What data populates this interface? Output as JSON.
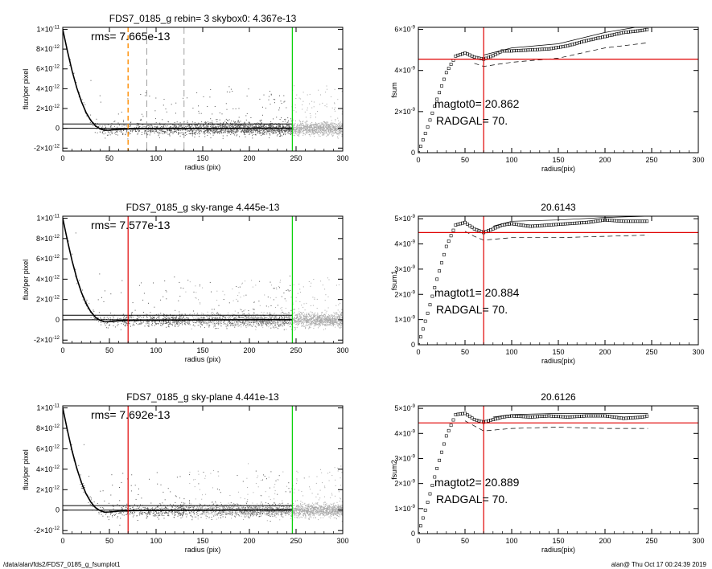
{
  "footer": {
    "left": "/data/alan/fds2/FDS7_0185_g_fsumplot1",
    "right": "alan@  Thu Oct 17 00:24:39 2019"
  },
  "colors": {
    "axes": "#000000",
    "scatter": "#555555",
    "scatter_light": "#a8a8a8",
    "profile": "#000000",
    "red": "#e00000",
    "green": "#00d000",
    "orange": "#ff8c00",
    "gray_dash": "#888888"
  },
  "chart_data": [
    {
      "id": "flux-1",
      "type": "scatter",
      "title": "FDS7_0185_g rebin= 3    skybox0:  4.367e-13",
      "xlabel": "radius (pix)",
      "ylabel": "flux/per pixel",
      "xlim": [
        0,
        300
      ],
      "ylim": [
        -2.3e-12,
        1.02e-11
      ],
      "xticks": [
        0,
        50,
        100,
        150,
        200,
        250,
        300
      ],
      "yticks": [
        {
          "value": -2e-12,
          "mant": "-2×10",
          "exp": "-12"
        },
        {
          "value": 0,
          "mant": "0",
          "exp": ""
        },
        {
          "value": 2e-12,
          "mant": "2×10",
          "exp": "-12"
        },
        {
          "value": 4e-12,
          "mant": "4×10",
          "exp": "-12"
        },
        {
          "value": 6e-12,
          "mant": "6×10",
          "exp": "-12"
        },
        {
          "value": 8e-12,
          "mant": "8×10",
          "exp": "-12"
        },
        {
          "value": 1e-11,
          "mant": "1×10",
          "exp": "-11"
        }
      ],
      "annotation": "rms= 7.665e-13",
      "hlines": [
        4.367e-13,
        0
      ],
      "vlines": [
        {
          "x": 70,
          "style": "orange-dash"
        },
        {
          "x": 90,
          "style": "gray-dash"
        },
        {
          "x": 130,
          "style": "gray-dash"
        },
        {
          "x": 246,
          "style": "green"
        }
      ],
      "profile": {
        "x": [
          0,
          5,
          10,
          15,
          20,
          25,
          30,
          35,
          40,
          45,
          50,
          60,
          70,
          80,
          100,
          120,
          150,
          180,
          210,
          246
        ],
        "y": [
          1e-11,
          7.8e-12,
          5.8e-12,
          4.1e-12,
          2.7e-12,
          1.6e-12,
          8e-13,
          2.5e-13,
          -5e-14,
          -2e-13,
          -1.8e-13,
          -1e-13,
          -6e-14,
          -4e-14,
          -3e-14,
          -2e-14,
          -1e-14,
          0,
          1e-14,
          1e-14
        ]
      }
    },
    {
      "id": "fsum-0",
      "type": "scatter",
      "title": "",
      "xlabel": "radius(pix)",
      "ylabel": "fsum",
      "xlim": [
        0,
        300
      ],
      "ylim": [
        0,
        6.1e-09
      ],
      "xticks": [
        0,
        50,
        100,
        150,
        200,
        250,
        300
      ],
      "yticks": [
        {
          "value": 0,
          "mant": "0",
          "exp": ""
        },
        {
          "value": 2e-09,
          "mant": "2×10",
          "exp": "-9"
        },
        {
          "value": 4e-09,
          "mant": "4×10",
          "exp": "-9"
        },
        {
          "value": 6e-09,
          "mant": "6×10",
          "exp": "-9"
        }
      ],
      "annotation": "magtot0=  20.862",
      "annotation2": "RADGAL=     70.",
      "hline": 4.55e-09,
      "vline": 70,
      "curve": {
        "x": [
          0,
          10,
          20,
          30,
          40,
          50,
          60,
          70,
          80,
          90,
          100,
          120,
          140,
          160,
          180,
          200,
          220,
          240,
          246
        ],
        "y": [
          0,
          1.25e-09,
          2.6e-09,
          3.9e-09,
          4.7e-09,
          4.85e-09,
          4.65e-09,
          4.55e-09,
          4.72e-09,
          4.95e-09,
          4.95e-09,
          5e-09,
          5.05e-09,
          5.2e-09,
          5.45e-09,
          5.65e-09,
          5.85e-09,
          5.95e-09,
          6e-09
        ]
      },
      "upper": {
        "x": [
          70,
          100,
          150,
          200,
          246
        ],
        "y": [
          4.75e-09,
          5.1e-09,
          5.3e-09,
          5.85e-09,
          6.2e-09
        ]
      },
      "lower": {
        "x": [
          60,
          70,
          100,
          150,
          200,
          246
        ],
        "y": [
          4.35e-09,
          4.2e-09,
          4.4e-09,
          4.6e-09,
          5.1e-09,
          5.35e-09
        ]
      }
    },
    {
      "id": "flux-2",
      "type": "scatter",
      "title": "FDS7_0185_g sky-range  4.445e-13",
      "xlabel": "radius (pix)",
      "ylabel": "flux/per pixel",
      "xlim": [
        0,
        300
      ],
      "ylim": [
        -2.3e-12,
        1.02e-11
      ],
      "xticks": [
        0,
        50,
        100,
        150,
        200,
        250,
        300
      ],
      "yticks": [
        {
          "value": -2e-12,
          "mant": "-2×10",
          "exp": "-12"
        },
        {
          "value": 0,
          "mant": "0",
          "exp": ""
        },
        {
          "value": 2e-12,
          "mant": "2×10",
          "exp": "-12"
        },
        {
          "value": 4e-12,
          "mant": "4×10",
          "exp": "-12"
        },
        {
          "value": 6e-12,
          "mant": "6×10",
          "exp": "-12"
        },
        {
          "value": 8e-12,
          "mant": "8×10",
          "exp": "-12"
        },
        {
          "value": 1e-11,
          "mant": "1×10",
          "exp": "-11"
        }
      ],
      "annotation": "rms= 7.577e-13",
      "hlines": [
        4.445e-13,
        0
      ],
      "vlines": [
        {
          "x": 70,
          "style": "red"
        },
        {
          "x": 246,
          "style": "green"
        }
      ],
      "profile": {
        "x": [
          0,
          5,
          10,
          15,
          20,
          25,
          30,
          35,
          40,
          45,
          50,
          60,
          70,
          80,
          100,
          120,
          150,
          180,
          210,
          246
        ],
        "y": [
          1e-11,
          7.8e-12,
          5.8e-12,
          4.1e-12,
          2.7e-12,
          1.6e-12,
          8e-13,
          2.5e-13,
          -5e-14,
          -2e-13,
          -1.8e-13,
          -1e-13,
          -6e-14,
          -4e-14,
          -3e-14,
          -2e-14,
          -1e-14,
          0,
          1e-14,
          1e-14
        ]
      }
    },
    {
      "id": "fsum-1",
      "type": "scatter",
      "title": "20.6143",
      "xlabel": "radius(pix)",
      "ylabel": "fsum1",
      "xlim": [
        0,
        300
      ],
      "ylim": [
        0,
        5.1e-09
      ],
      "xticks": [
        0,
        50,
        100,
        150,
        200,
        250,
        300
      ],
      "yticks": [
        {
          "value": 0,
          "mant": "0",
          "exp": ""
        },
        {
          "value": 1e-09,
          "mant": "1×10",
          "exp": "-9"
        },
        {
          "value": 2e-09,
          "mant": "2×10",
          "exp": "-9"
        },
        {
          "value": 3e-09,
          "mant": "3×10",
          "exp": "-9"
        },
        {
          "value": 4e-09,
          "mant": "4×10",
          "exp": "-9"
        },
        {
          "value": 5e-09,
          "mant": "5×10",
          "exp": "-9"
        }
      ],
      "annotation": "magtot1=  20.884",
      "annotation2": "RADGAL=     70.",
      "hline": 4.45e-09,
      "vline": 70,
      "curve": {
        "x": [
          0,
          10,
          20,
          30,
          40,
          50,
          60,
          70,
          80,
          90,
          100,
          120,
          140,
          160,
          180,
          200,
          220,
          240,
          246
        ],
        "y": [
          0,
          1.25e-09,
          2.6e-09,
          3.9e-09,
          4.75e-09,
          4.85e-09,
          4.6e-09,
          4.45e-09,
          4.6e-09,
          4.75e-09,
          4.8e-09,
          4.7e-09,
          4.75e-09,
          4.8e-09,
          4.85e-09,
          4.95e-09,
          4.9e-09,
          4.9e-09,
          4.9e-09
        ]
      },
      "upper": {
        "x": [
          80,
          100,
          150,
          200,
          246
        ],
        "y": [
          4.7e-09,
          4.9e-09,
          4.95e-09,
          5.05e-09,
          5.1e-09
        ]
      },
      "lower": {
        "x": [
          50,
          60,
          70,
          100,
          150,
          200,
          246
        ],
        "y": [
          4.5e-09,
          4.3e-09,
          4.15e-09,
          4.25e-09,
          4.25e-09,
          4.3e-09,
          4.35e-09
        ]
      }
    },
    {
      "id": "flux-3",
      "type": "scatter",
      "title": "FDS7_0185_g sky-plane  4.441e-13",
      "xlabel": "radius (pix)",
      "ylabel": "flux/per pixel",
      "xlim": [
        0,
        300
      ],
      "ylim": [
        -2.3e-12,
        1.02e-11
      ],
      "xticks": [
        0,
        50,
        100,
        150,
        200,
        250,
        300
      ],
      "yticks": [
        {
          "value": -2e-12,
          "mant": "-2×10",
          "exp": "-12"
        },
        {
          "value": 0,
          "mant": "0",
          "exp": ""
        },
        {
          "value": 2e-12,
          "mant": "2×10",
          "exp": "-12"
        },
        {
          "value": 4e-12,
          "mant": "4×10",
          "exp": "-12"
        },
        {
          "value": 6e-12,
          "mant": "6×10",
          "exp": "-12"
        },
        {
          "value": 8e-12,
          "mant": "8×10",
          "exp": "-12"
        },
        {
          "value": 1e-11,
          "mant": "1×10",
          "exp": "-11"
        }
      ],
      "annotation": "rms= 7.692e-13",
      "hlines": [
        4.441e-13,
        0
      ],
      "vlines": [
        {
          "x": 70,
          "style": "red"
        },
        {
          "x": 246,
          "style": "green"
        }
      ],
      "profile": {
        "x": [
          0,
          5,
          10,
          15,
          20,
          25,
          30,
          35,
          40,
          45,
          50,
          60,
          70,
          80,
          100,
          120,
          150,
          180,
          210,
          246
        ],
        "y": [
          1e-11,
          7.8e-12,
          5.8e-12,
          4.1e-12,
          2.7e-12,
          1.6e-12,
          8e-13,
          2.5e-13,
          -5e-14,
          -2e-13,
          -1.8e-13,
          -1e-13,
          -6e-14,
          -4e-14,
          -3e-14,
          -2e-14,
          -1e-14,
          0,
          1e-14,
          1e-14
        ]
      }
    },
    {
      "id": "fsum-2",
      "type": "scatter",
      "title": "20.6126",
      "xlabel": "radius(pix)",
      "ylabel": "fsum2",
      "xlim": [
        0,
        300
      ],
      "ylim": [
        0,
        5.1e-09
      ],
      "xticks": [
        0,
        50,
        100,
        150,
        200,
        250,
        300
      ],
      "yticks": [
        {
          "value": 0,
          "mant": "0",
          "exp": ""
        },
        {
          "value": 1e-09,
          "mant": "1×10",
          "exp": "-9"
        },
        {
          "value": 2e-09,
          "mant": "2×10",
          "exp": "-9"
        },
        {
          "value": 3e-09,
          "mant": "3×10",
          "exp": "-9"
        },
        {
          "value": 4e-09,
          "mant": "4×10",
          "exp": "-9"
        },
        {
          "value": 5e-09,
          "mant": "5×10",
          "exp": "-9"
        }
      ],
      "annotation": "magtot2=  20.889",
      "annotation2": "RADGAL=     70.",
      "hline": 4.42e-09,
      "vline": 70,
      "curve": {
        "x": [
          0,
          10,
          20,
          30,
          40,
          50,
          60,
          70,
          80,
          90,
          100,
          120,
          140,
          160,
          180,
          200,
          220,
          240,
          246
        ],
        "y": [
          0,
          1.25e-09,
          2.6e-09,
          3.9e-09,
          4.75e-09,
          4.8e-09,
          4.55e-09,
          4.45e-09,
          4.55e-09,
          4.65e-09,
          4.7e-09,
          4.65e-09,
          4.7e-09,
          4.65e-09,
          4.7e-09,
          4.7e-09,
          4.6e-09,
          4.65e-09,
          4.7e-09
        ]
      },
      "upper": {
        "x": [
          80,
          100,
          150,
          200,
          246
        ],
        "y": [
          4.65e-09,
          4.75e-09,
          4.8e-09,
          4.8e-09,
          4.8e-09
        ]
      },
      "lower": {
        "x": [
          50,
          60,
          70,
          100,
          150,
          200,
          246
        ],
        "y": [
          4.5e-09,
          4.3e-09,
          4.1e-09,
          4.2e-09,
          4.25e-09,
          4.2e-09,
          4.2e-09
        ]
      }
    }
  ]
}
